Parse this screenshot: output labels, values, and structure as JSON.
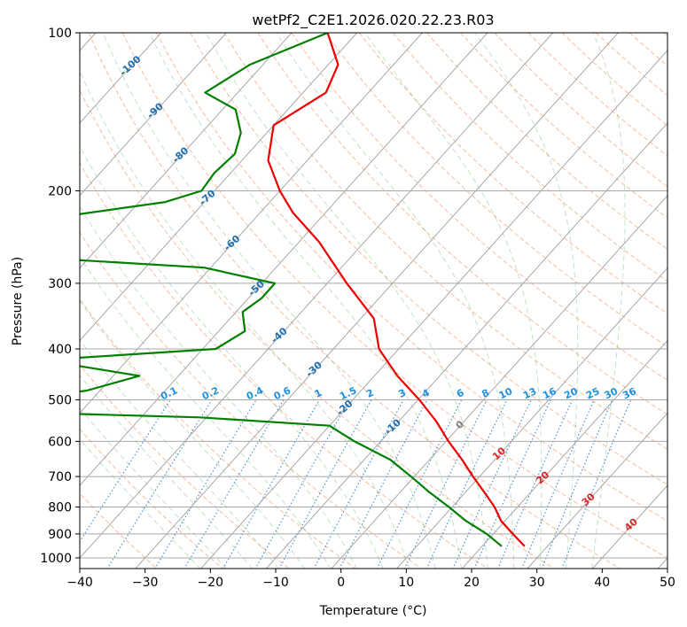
{
  "chart_data": {
    "type": "skew-t",
    "title": "wetPf2_C2E1.2026.020.22.23.R03",
    "xlabel": "Temperature (°C)",
    "ylabel": "Pressure (hPa)",
    "xlim": [
      -40,
      50
    ],
    "ylim": [
      1050,
      100
    ],
    "x_ticks": [
      -40,
      -30,
      -20,
      -10,
      0,
      10,
      20,
      30,
      40,
      50
    ],
    "x_tick_labels": [
      "−40",
      "−30",
      "−20",
      "−10",
      "0",
      "10",
      "20",
      "30",
      "40",
      "50"
    ],
    "y_ticks": [
      100,
      200,
      300,
      400,
      500,
      600,
      700,
      800,
      900,
      1000
    ],
    "y_tick_labels": [
      "100",
      "200",
      "300",
      "400",
      "500",
      "600",
      "700",
      "800",
      "900",
      "1000"
    ],
    "grid": true,
    "background_lines": {
      "isotherms": "gray",
      "dry_adiabats": "dashed salmon",
      "moist_adiabats": "dashed green",
      "mixing_ratio": "dotted blue",
      "isotherm_labels": [
        "-100",
        "-90",
        "-80",
        "-70",
        "-60",
        "-50",
        "-40",
        "-30",
        "-20",
        "-10",
        "0",
        "10",
        "20",
        "30",
        "40"
      ],
      "mixing_ratio_labels": [
        "0.1",
        "0.2",
        "0.4",
        "0.6",
        "1",
        "1.5",
        "2",
        "3",
        "4",
        "6",
        "8",
        "10",
        "13",
        "16",
        "20",
        "25",
        "30",
        "36"
      ]
    },
    "series": [
      {
        "role": "temperature",
        "color": "#ee0000",
        "pressure": [
          950,
          900,
          850,
          800,
          750,
          700,
          650,
          600,
          550,
          500,
          450,
          400,
          350,
          300,
          250,
          220,
          200,
          175,
          150,
          130,
          115,
          100
        ],
        "temperature": [
          26.5,
          23.0,
          19.4,
          16.5,
          12.9,
          9.0,
          5.0,
          0.4,
          -4.2,
          -9.8,
          -16.5,
          -23.0,
          -28.0,
          -37.0,
          -47.0,
          -55.0,
          -60.0,
          -66.0,
          -70.0,
          -66.5,
          -68.5,
          -74.5
        ]
      },
      {
        "role": "dewpoint",
        "color": "#008000",
        "pressure": [
          950,
          900,
          850,
          800,
          750,
          700,
          650,
          600,
          560,
          540,
          525,
          510,
          502,
          500,
          480,
          450,
          420,
          400,
          370,
          340,
          320,
          300,
          280,
          265,
          255,
          245,
          230,
          222,
          210,
          200,
          185,
          170,
          155,
          140,
          130,
          115,
          100
        ],
        "dewpoint": [
          23.0,
          19.0,
          14.0,
          9.5,
          4.5,
          -0.5,
          -6.0,
          -14.0,
          -20.0,
          -41.0,
          -77.0,
          -77.0,
          -79.0,
          -71.0,
          -62.0,
          -56.0,
          -73.0,
          -48.0,
          -46.0,
          -49.0,
          -48.0,
          -48.0,
          -61.0,
          -95.0,
          -95.0,
          -91.0,
          -93.0,
          -88.0,
          -76.0,
          -72.0,
          -72.5,
          -72.0,
          -74.0,
          -78.0,
          -85.0,
          -82.0,
          -74.5
        ]
      }
    ]
  }
}
